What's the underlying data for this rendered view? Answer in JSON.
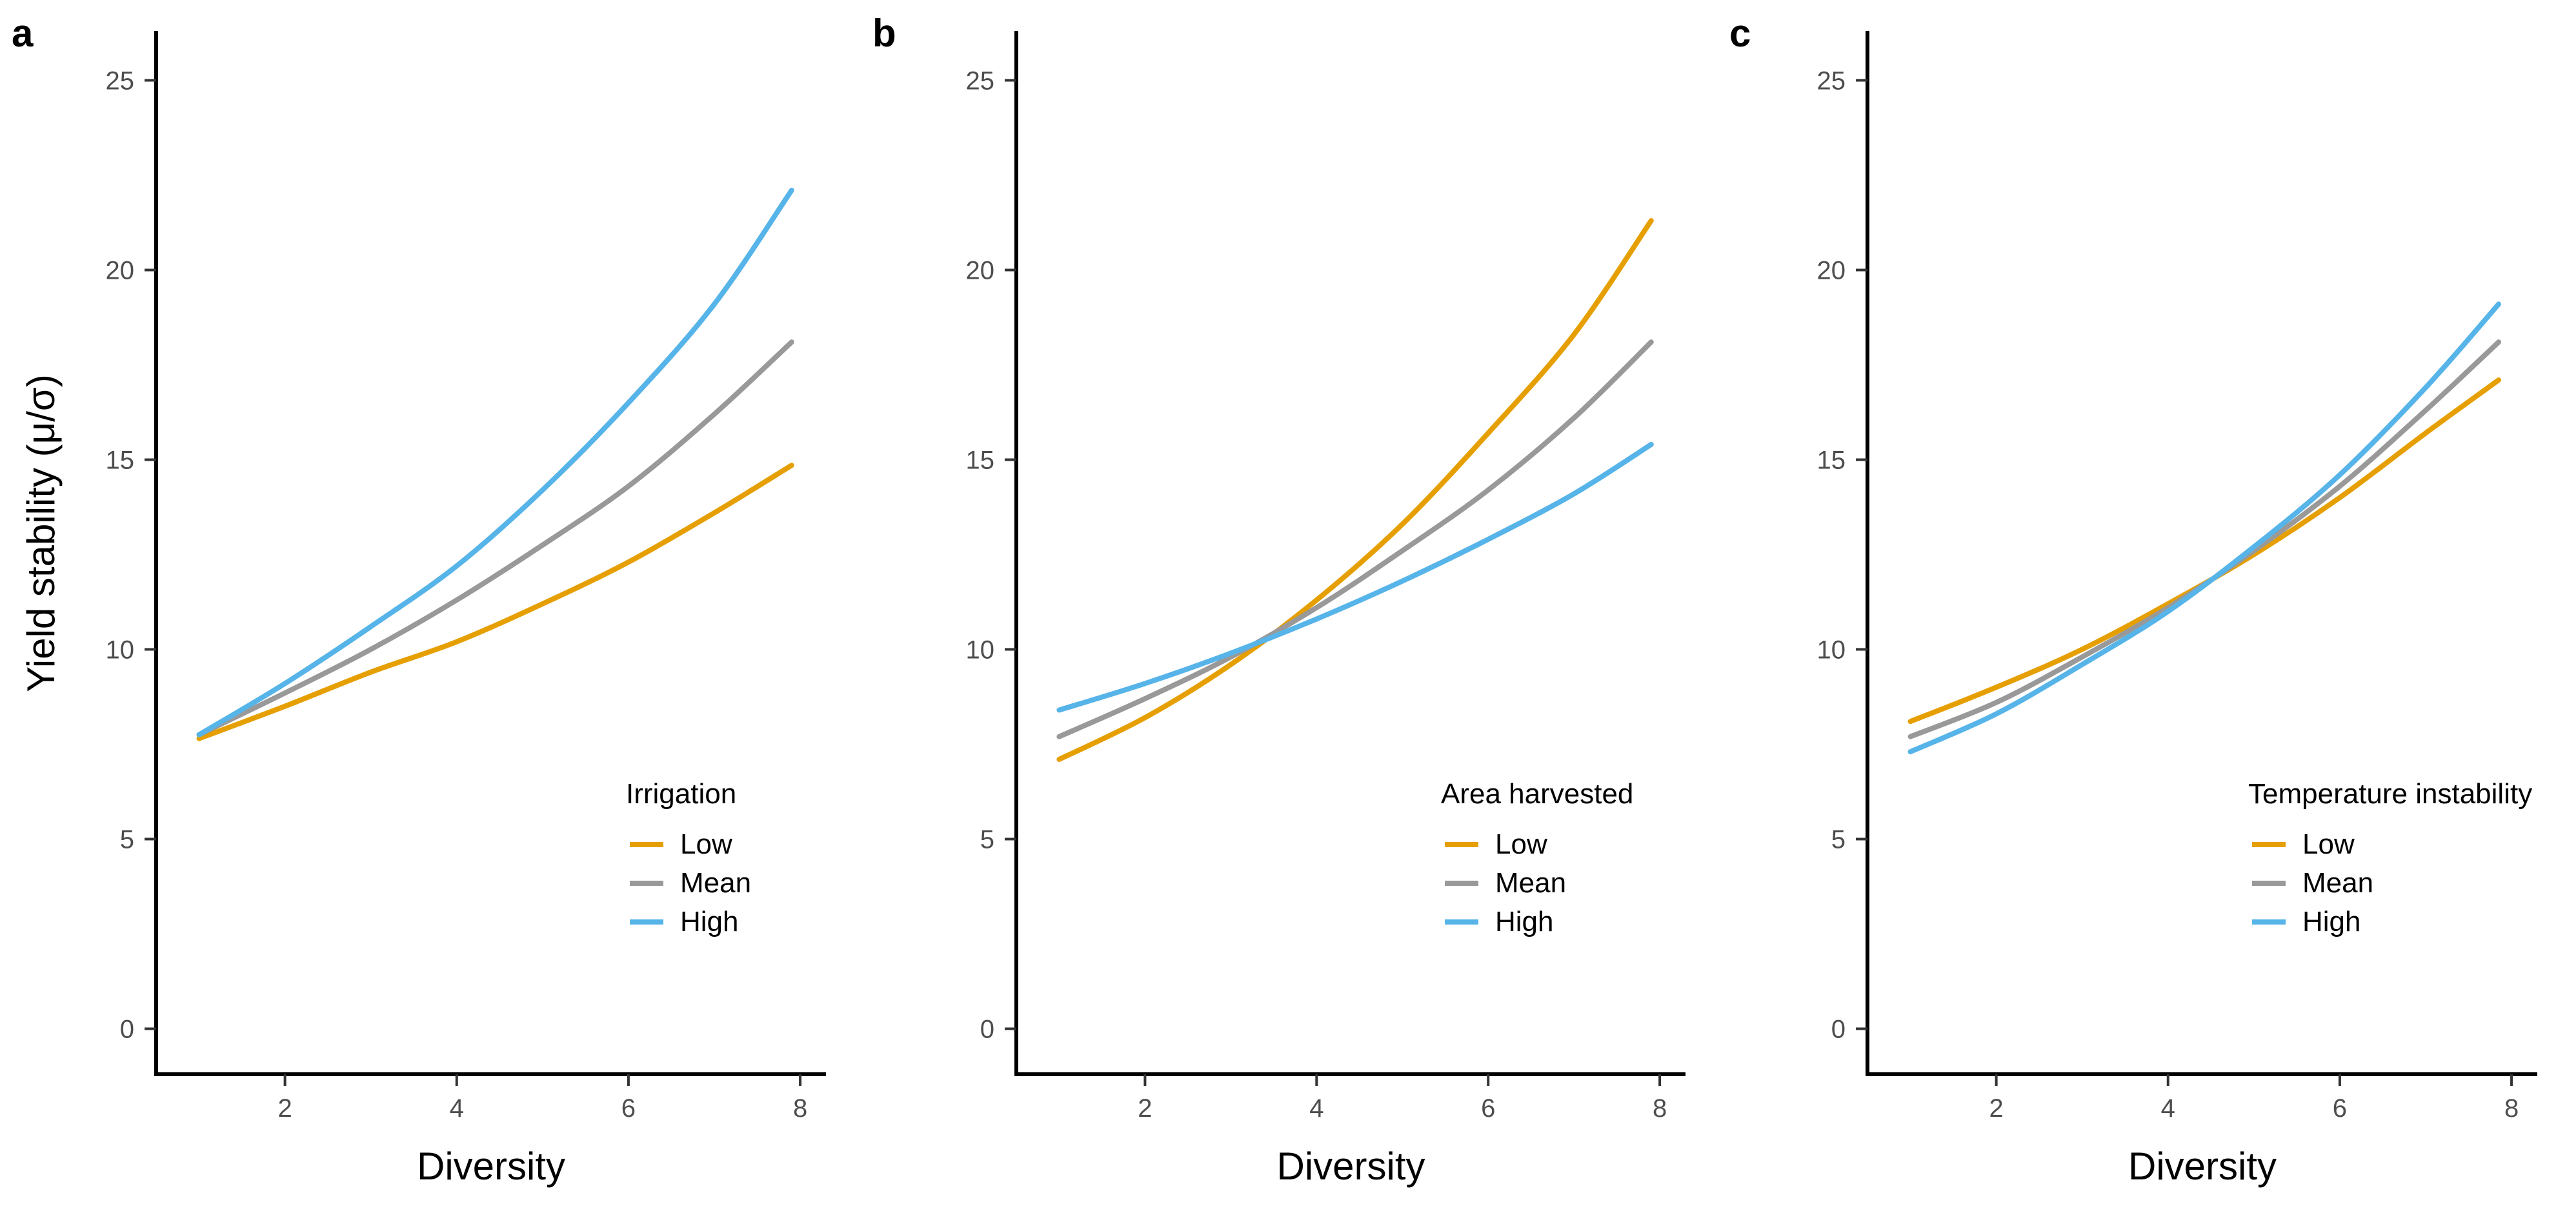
{
  "chart_data": [
    {
      "type": "line",
      "panel_label": "a",
      "xlabel": "Diversity",
      "ylabel": "Yield stability (μ/σ)",
      "xlim": [
        0.5,
        8.3
      ],
      "ylim": [
        -1.2,
        26.3
      ],
      "x_ticks": [
        2,
        4,
        6,
        8
      ],
      "y_ticks": [
        0,
        5,
        10,
        15,
        20,
        25
      ],
      "legend": {
        "title": "Irrigation",
        "position": "bottom-right"
      },
      "series": [
        {
          "name": "Low",
          "color": "#E69F00",
          "x": [
            1,
            2,
            3,
            4,
            5,
            6,
            7,
            7.9
          ],
          "y": [
            7.65,
            8.5,
            9.4,
            10.2,
            11.2,
            12.3,
            13.6,
            14.85
          ]
        },
        {
          "name": "Mean",
          "color": "#999999",
          "x": [
            1,
            2,
            3,
            4,
            5,
            6,
            7,
            7.9
          ],
          "y": [
            7.75,
            8.85,
            10.0,
            11.3,
            12.75,
            14.3,
            16.2,
            18.1
          ]
        },
        {
          "name": "High",
          "color": "#56B4E9",
          "x": [
            1,
            2,
            3,
            4,
            5,
            6,
            7,
            7.9
          ],
          "y": [
            7.75,
            9.1,
            10.6,
            12.2,
            14.2,
            16.5,
            19.1,
            22.1
          ]
        }
      ]
    },
    {
      "type": "line",
      "panel_label": "b",
      "xlabel": "Diversity",
      "ylabel": "",
      "xlim": [
        0.5,
        8.3
      ],
      "ylim": [
        -1.2,
        26.3
      ],
      "x_ticks": [
        2,
        4,
        6,
        8
      ],
      "y_ticks": [
        0,
        5,
        10,
        15,
        20,
        25
      ],
      "legend": {
        "title": "Area harvested",
        "position": "bottom-right"
      },
      "series": [
        {
          "name": "Low",
          "color": "#E69F00",
          "x": [
            1,
            2,
            3,
            4,
            5,
            6,
            7,
            7.9
          ],
          "y": [
            7.1,
            8.2,
            9.6,
            11.3,
            13.3,
            15.7,
            18.3,
            21.3
          ]
        },
        {
          "name": "Mean",
          "color": "#999999",
          "x": [
            1,
            2,
            3,
            4,
            5,
            6,
            7,
            7.9
          ],
          "y": [
            7.7,
            8.7,
            9.8,
            11.1,
            12.6,
            14.2,
            16.1,
            18.1
          ]
        },
        {
          "name": "High",
          "color": "#56B4E9",
          "x": [
            1,
            2,
            3,
            4,
            5,
            6,
            7,
            7.9
          ],
          "y": [
            8.4,
            9.1,
            9.9,
            10.8,
            11.8,
            12.9,
            14.1,
            15.4
          ]
        }
      ]
    },
    {
      "type": "line",
      "panel_label": "c",
      "xlabel": "Diversity",
      "ylabel": "",
      "xlim": [
        0.5,
        8.3
      ],
      "ylim": [
        -1.2,
        26.3
      ],
      "x_ticks": [
        2,
        4,
        6,
        8
      ],
      "y_ticks": [
        0,
        5,
        10,
        15,
        20,
        25
      ],
      "legend": {
        "title": "Temperature instability",
        "position": "bottom-right"
      },
      "series": [
        {
          "name": "Low",
          "color": "#E69F00",
          "x": [
            1,
            2,
            3,
            4,
            5,
            6,
            7,
            7.85
          ],
          "y": [
            8.1,
            9.0,
            10.0,
            11.2,
            12.5,
            14.0,
            15.7,
            17.1
          ]
        },
        {
          "name": "Mean",
          "color": "#999999",
          "x": [
            1,
            2,
            3,
            4,
            5,
            6,
            7,
            7.85
          ],
          "y": [
            7.7,
            8.6,
            9.8,
            11.1,
            12.6,
            14.3,
            16.3,
            18.1
          ]
        },
        {
          "name": "High",
          "color": "#56B4E9",
          "x": [
            1,
            2,
            3,
            4,
            5,
            6,
            7,
            7.85
          ],
          "y": [
            7.3,
            8.3,
            9.6,
            11.0,
            12.7,
            14.6,
            16.9,
            19.1
          ]
        }
      ]
    }
  ]
}
